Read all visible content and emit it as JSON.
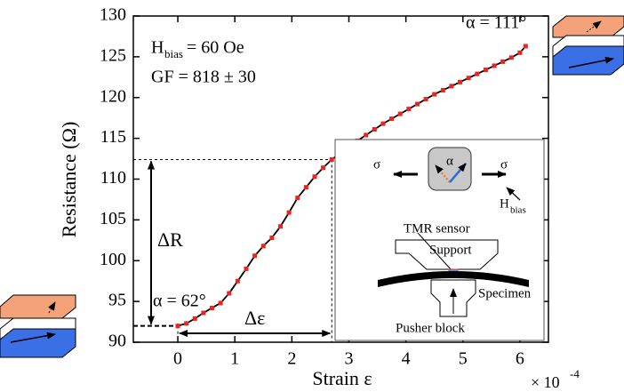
{
  "chart_data": {
    "type": "line",
    "x_label": "Strain ε",
    "y_label": "Resistance (Ω)",
    "x_exponent": {
      "base": "× 10",
      "power": "-4"
    },
    "xlim": [
      -0.78,
      6.5
    ],
    "ylim": [
      90,
      130
    ],
    "xticks": [
      0,
      1,
      2,
      3,
      4,
      5,
      6
    ],
    "yticks": [
      90,
      95,
      100,
      105,
      110,
      115,
      120,
      125,
      130
    ],
    "series": [
      {
        "color": "#e8251f",
        "line_color": "#000000",
        "x": [
          0,
          0.15,
          0.3,
          0.45,
          0.6,
          0.75,
          0.9,
          1.05,
          1.2,
          1.35,
          1.5,
          1.65,
          1.8,
          1.95,
          2.1,
          2.25,
          2.4,
          2.55,
          2.7,
          2.85,
          3.0,
          3.15,
          3.3,
          3.45,
          3.6,
          3.75,
          3.9,
          4.05,
          4.2,
          4.35,
          4.5,
          4.65,
          4.8,
          4.95,
          5.1,
          5.25,
          5.4,
          5.55,
          5.7,
          5.85,
          6.0,
          6.1
        ],
        "values": [
          92.0,
          92.3,
          92.9,
          93.6,
          94.2,
          94.8,
          96.0,
          97.5,
          99.0,
          100.6,
          101.8,
          102.8,
          104.2,
          105.9,
          107.7,
          109.0,
          110.3,
          111.4,
          112.4,
          113.2,
          114.0,
          114.7,
          115.4,
          116.1,
          116.8,
          117.4,
          118.0,
          118.6,
          119.2,
          119.8,
          120.4,
          120.9,
          121.4,
          121.9,
          122.4,
          122.9,
          123.4,
          123.9,
          124.4,
          124.9,
          125.5,
          126.3
        ]
      }
    ],
    "annotations": {
      "hbias": {
        "main": "H",
        "sub": "bias",
        "rest": "= 60 Oe"
      },
      "gf": "GF = 818 ± 30",
      "alpha_end": "α = 111°",
      "alpha_start": "α = 62°",
      "delta_r": "ΔR",
      "delta_eps": "Δε"
    },
    "inset": {
      "sigma_left": "σ",
      "alpha": "α",
      "sigma_right": "σ",
      "h_main": "H",
      "h_sub": "bias",
      "tmr": "TMR sensor",
      "support": "Support",
      "specimen": "Specimen",
      "pusher": "Pusher block"
    }
  }
}
